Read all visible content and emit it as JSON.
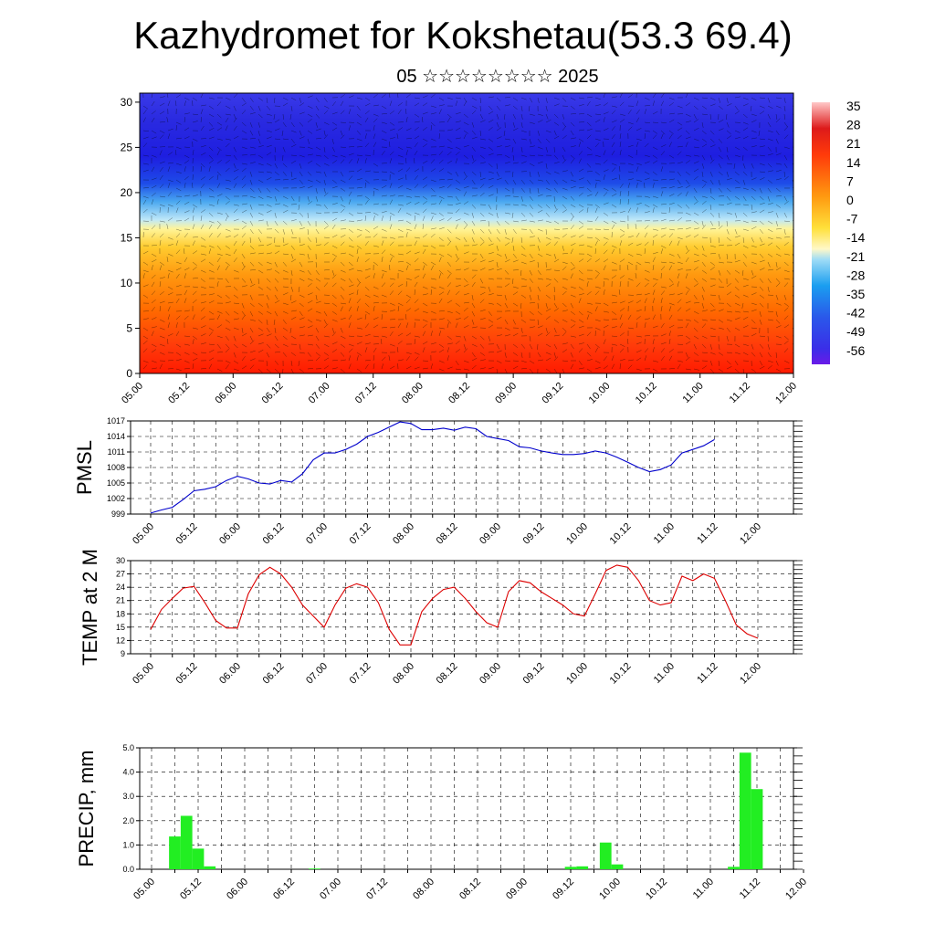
{
  "title": "Kazhydromet for Kokshetau(53.3 69.4)",
  "subtitle": "05 ☆☆☆☆☆☆☆☆ 2025",
  "chart_data": [
    {
      "type": "heatmap",
      "description_axis": "height vs time cross-section with wind barbs",
      "y_ticks": [
        "0",
        "5",
        "10",
        "15",
        "20",
        "25",
        "30"
      ],
      "ylim": [
        0,
        31
      ],
      "x_ticks": [
        "05.00",
        "05.12",
        "06.00",
        "06.12",
        "07.00",
        "07.12",
        "08.00",
        "08.12",
        "09.00",
        "09.12",
        "10.00",
        "10.12",
        "11.00",
        "11.12",
        "12.00"
      ],
      "colorbar_labels": [
        "35",
        "28",
        "21",
        "14",
        "7",
        "0",
        "-7",
        "-14",
        "-21",
        "-28",
        "-35",
        "-42",
        "-49",
        "-56"
      ],
      "profile": [
        {
          "h": 0,
          "color": "#ff1a00"
        },
        {
          "h": 3,
          "color": "#ff3a0a"
        },
        {
          "h": 7,
          "color": "#ff6a00"
        },
        {
          "h": 11,
          "color": "#ff9a10"
        },
        {
          "h": 14,
          "color": "#ffcc30"
        },
        {
          "h": 16,
          "color": "#fff59a"
        },
        {
          "h": 17,
          "color": "#bfe8f8"
        },
        {
          "h": 19,
          "color": "#4aa8f0"
        },
        {
          "h": 21,
          "color": "#1e4ce8"
        },
        {
          "h": 24,
          "color": "#1e1ee0"
        },
        {
          "h": 28,
          "color": "#2a2ae0"
        },
        {
          "h": 31,
          "color": "#3a3ae8"
        }
      ]
    },
    {
      "type": "line",
      "ylabel": "PMSL",
      "y_ticks": [
        "999",
        "1002",
        "1005",
        "1008",
        "1011",
        "1014",
        "1017"
      ],
      "ylim": [
        999,
        1017
      ],
      "x_ticks": [
        "05.00",
        "05.12",
        "06.00",
        "06.12",
        "07.00",
        "07.12",
        "08.00",
        "08.12",
        "09.00",
        "09.12",
        "10.00",
        "10.12",
        "11.00",
        "11.12",
        "12.00"
      ],
      "color": "#0000cc",
      "values": [
        999.2,
        999.8,
        1000.3,
        1001.8,
        1003.5,
        1003.8,
        1004.3,
        1005.5,
        1006.3,
        1005.8,
        1005.0,
        1004.8,
        1005.5,
        1005.2,
        1006.8,
        1009.5,
        1010.8,
        1010.8,
        1011.5,
        1012.5,
        1014.0,
        1014.8,
        1015.8,
        1016.8,
        1016.5,
        1015.3,
        1015.3,
        1015.6,
        1015.2,
        1015.8,
        1015.5,
        1014.0,
        1013.6,
        1013.2,
        1012.0,
        1011.8,
        1011.2,
        1010.8,
        1010.5,
        1010.5,
        1010.7,
        1011.2,
        1010.8,
        1010.0,
        1009.0,
        1008.0,
        1007.2,
        1007.6,
        1008.5,
        1010.8,
        1011.5,
        1012.2,
        1013.4
      ]
    },
    {
      "type": "line",
      "ylabel": "TEMP at 2 M",
      "y_ticks": [
        "9",
        "12",
        "15",
        "18",
        "21",
        "24",
        "27",
        "30"
      ],
      "ylim": [
        9,
        30
      ],
      "x_ticks": [
        "05.00",
        "05.12",
        "06.00",
        "06.12",
        "07.00",
        "07.12",
        "08.00",
        "08.12",
        "09.00",
        "09.12",
        "10.00",
        "10.12",
        "11.00",
        "11.12",
        "12.00"
      ],
      "color": "#dd0000",
      "values": [
        14.5,
        19.0,
        21.5,
        23.8,
        24.2,
        20.5,
        16.5,
        14.8,
        14.8,
        22.5,
        26.8,
        28.5,
        27.0,
        24.0,
        20.0,
        17.5,
        15.0,
        20.0,
        23.8,
        24.8,
        24.0,
        20.5,
        14.5,
        11.0,
        11.0,
        18.5,
        21.5,
        23.5,
        24.0,
        21.5,
        18.5,
        16.0,
        15.0,
        23.0,
        25.5,
        25.0,
        23.0,
        21.5,
        20.0,
        18.0,
        17.5,
        22.5,
        27.8,
        29.0,
        28.5,
        25.5,
        21.0,
        20.0,
        20.5,
        26.5,
        25.5,
        27.0,
        26.0,
        21.0,
        15.5,
        13.5,
        12.5
      ]
    },
    {
      "type": "bar",
      "ylabel": "PRECIP, mm",
      "y_ticks": [
        "0.0",
        "1.0",
        "2.0",
        "3.0",
        "4.0",
        "5.0"
      ],
      "ylim": [
        0,
        5
      ],
      "x_ticks": [
        "05.00",
        "05.12",
        "06.00",
        "06.12",
        "07.00",
        "07.12",
        "08.00",
        "08.12",
        "09.00",
        "09.12",
        "10.00",
        "10.12",
        "11.00",
        "11.12",
        "12.00"
      ],
      "color": "#22ee22",
      "x": [
        2,
        3,
        4,
        5,
        14,
        36,
        37,
        39,
        40,
        50,
        51,
        52
      ],
      "values": [
        1.35,
        2.2,
        0.85,
        0.12,
        0.03,
        0.1,
        0.12,
        1.1,
        0.2,
        0.1,
        4.8,
        3.3
      ]
    }
  ]
}
